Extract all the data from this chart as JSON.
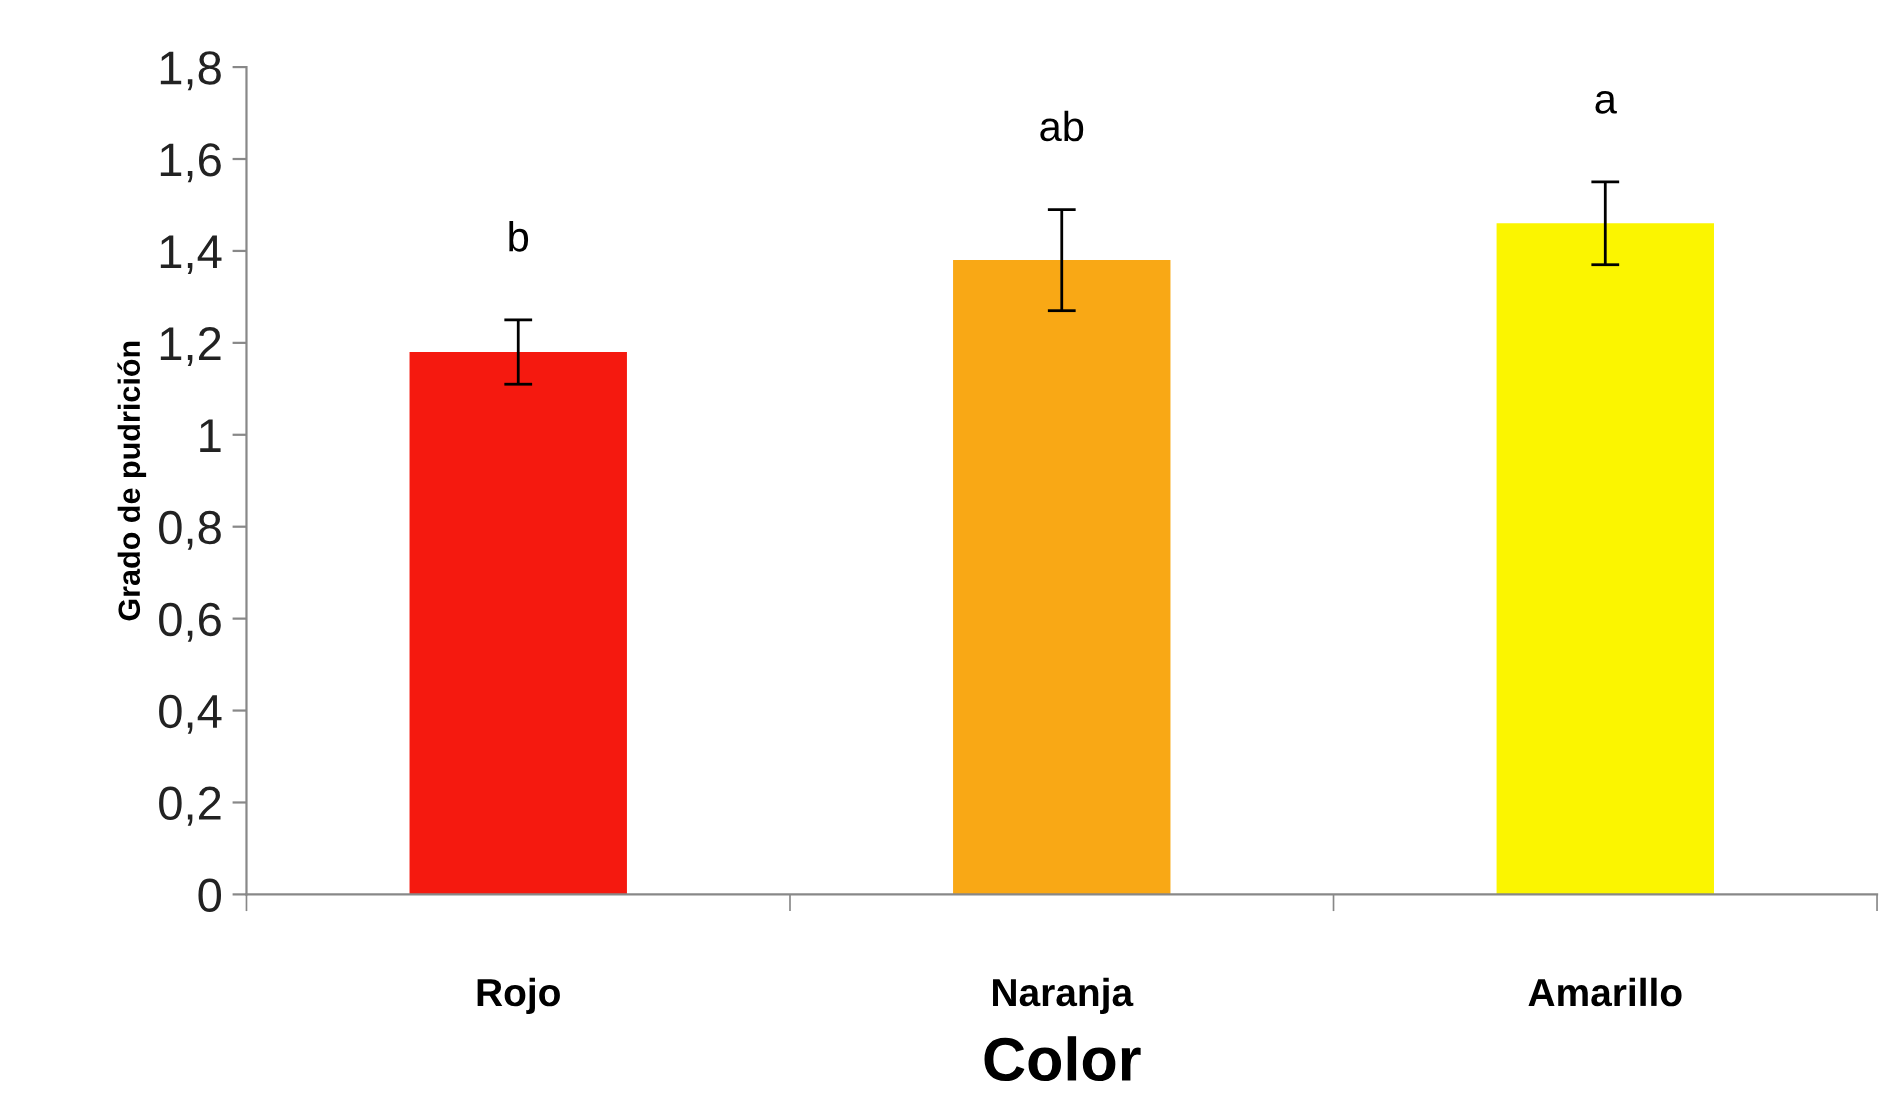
{
  "chart_data": {
    "type": "bar",
    "xlabel": "Color",
    "ylabel": "Grado de pudrición",
    "categories": [
      "Rojo",
      "Naranja",
      "Amarillo"
    ],
    "values": [
      1.18,
      1.38,
      1.46
    ],
    "colors": [
      "#f5190f",
      "#f9a815",
      "#fbf500"
    ],
    "errors": [
      0.07,
      0.11,
      0.09
    ],
    "ylim": [
      0,
      1.8
    ],
    "yticks": [
      0,
      {
        "value": 0.2,
        "label": "0,2"
      },
      {
        "value": 0.4,
        "label": "0,4"
      },
      {
        "value": 0.6,
        "label": "0,6"
      },
      {
        "value": 0.8,
        "label": "0,8"
      },
      1,
      {
        "value": 1.2,
        "label": "1,2"
      },
      {
        "value": 1.4,
        "label": "1,4"
      },
      {
        "value": 1.6,
        "label": "1,6"
      },
      {
        "value": 1.8,
        "label": "1,8"
      }
    ],
    "annotations": [
      "b",
      "ab",
      "a"
    ],
    "grid": false
  }
}
